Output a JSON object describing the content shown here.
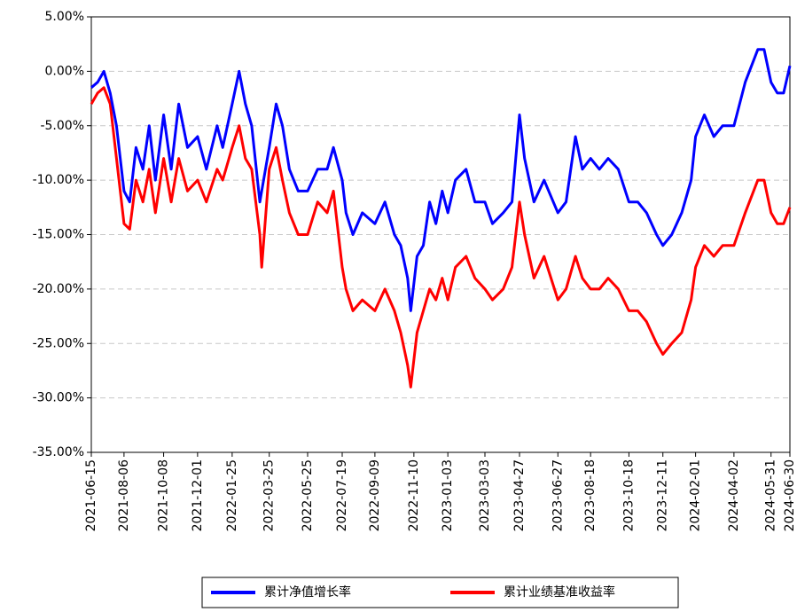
{
  "chart_data": {
    "type": "line",
    "x": [
      "2021-06-15",
      "2021-06-25",
      "2021-07-05",
      "2021-07-15",
      "2021-07-25",
      "2021-08-06",
      "2021-08-15",
      "2021-08-25",
      "2021-09-05",
      "2021-09-15",
      "2021-09-25",
      "2021-10-08",
      "2021-10-20",
      "2021-11-01",
      "2021-11-15",
      "2021-12-01",
      "2021-12-15",
      "2022-01-01",
      "2022-01-10",
      "2022-01-25",
      "2022-02-05",
      "2022-02-15",
      "2022-02-25",
      "2022-03-10",
      "2022-03-13",
      "2022-03-25",
      "2022-04-05",
      "2022-04-15",
      "2022-04-26",
      "2022-05-10",
      "2022-05-25",
      "2022-06-10",
      "2022-06-25",
      "2022-07-05",
      "2022-07-19",
      "2022-07-25",
      "2022-08-05",
      "2022-08-20",
      "2022-09-09",
      "2022-09-25",
      "2022-10-10",
      "2022-10-20",
      "2022-10-31",
      "2022-11-05",
      "2022-11-15",
      "2022-11-25",
      "2022-12-05",
      "2022-12-15",
      "2022-12-25",
      "2023-01-03",
      "2023-01-15",
      "2023-02-01",
      "2023-02-15",
      "2023-03-03",
      "2023-03-15",
      "2023-04-01",
      "2023-04-15",
      "2023-04-27",
      "2023-05-05",
      "2023-05-20",
      "2023-06-05",
      "2023-06-27",
      "2023-07-10",
      "2023-07-25",
      "2023-08-05",
      "2023-08-18",
      "2023-09-01",
      "2023-09-15",
      "2023-10-01",
      "2023-10-18",
      "2023-11-01",
      "2023-11-15",
      "2023-12-01",
      "2023-12-11",
      "2023-12-25",
      "2024-01-10",
      "2024-01-25",
      "2024-02-01",
      "2024-02-15",
      "2024-03-01",
      "2024-03-15",
      "2024-04-02",
      "2024-04-20",
      "2024-05-10",
      "2024-05-20",
      "2024-05-31",
      "2024-06-10",
      "2024-06-20",
      "2024-06-30"
    ],
    "series": [
      {
        "name": "累计净值增长率",
        "color": "#0000ff",
        "values": [
          -1.5,
          -1,
          0,
          -2,
          -5,
          -11,
          -12,
          -7,
          -9,
          -5,
          -10,
          -4,
          -9,
          -3,
          -7,
          -6,
          -9,
          -5,
          -7,
          -3,
          0,
          -3,
          -5,
          -12,
          -11,
          -7,
          -3,
          -5,
          -9,
          -11,
          -11,
          -9,
          -9,
          -7,
          -10,
          -13,
          -15,
          -13,
          -14,
          -12,
          -15,
          -16,
          -19,
          -22,
          -17,
          -16,
          -12,
          -14,
          -11,
          -13,
          -10,
          -9,
          -12,
          -12,
          -14,
          -13,
          -12,
          -4,
          -8,
          -12,
          -10,
          -13,
          -12,
          -6,
          -9,
          -8,
          -9,
          -8,
          -9,
          -12,
          -12,
          -13,
          -15,
          -16,
          -15,
          -13,
          -10,
          -6,
          -4,
          -6,
          -5,
          -5,
          -1,
          2,
          2,
          -1,
          -2,
          -2,
          0.5
        ]
      },
      {
        "name": "累计业绩基准收益率",
        "color": "#ff0000",
        "values": [
          -3,
          -2,
          -1.5,
          -3,
          -8,
          -14,
          -14.5,
          -10,
          -12,
          -9,
          -13,
          -8,
          -12,
          -8,
          -11,
          -10,
          -12,
          -9,
          -10,
          -7,
          -5,
          -8,
          -9,
          -15,
          -18,
          -9,
          -7,
          -10,
          -13,
          -15,
          -15,
          -12,
          -13,
          -11,
          -18,
          -20,
          -22,
          -21,
          -22,
          -20,
          -22,
          -24,
          -27,
          -29,
          -24,
          -22,
          -20,
          -21,
          -19,
          -21,
          -18,
          -17,
          -19,
          -20,
          -21,
          -20,
          -18,
          -12,
          -15,
          -19,
          -17,
          -21,
          -20,
          -17,
          -19,
          -20,
          -20,
          -19,
          -20,
          -22,
          -22,
          -23,
          -25,
          -26,
          -25,
          -24,
          -21,
          -18,
          -16,
          -17,
          -16,
          -16,
          -13,
          -10,
          -10,
          -13,
          -14,
          -14,
          -12.5
        ]
      }
    ],
    "xlim": [
      "2021-06-15",
      "2024-06-30"
    ],
    "xticks": [
      "2021-06-15",
      "2021-08-06",
      "2021-10-08",
      "2021-12-01",
      "2022-01-25",
      "2022-03-25",
      "2022-05-25",
      "2022-07-19",
      "2022-09-09",
      "2022-11-10",
      "2023-01-03",
      "2023-03-03",
      "2023-04-27",
      "2023-06-27",
      "2023-08-18",
      "2023-10-18",
      "2023-12-11",
      "2024-02-01",
      "2024-04-02",
      "2024-05-31",
      "2024-06-30"
    ],
    "ylim": [
      -35,
      5
    ],
    "yticks": [
      {
        "value": -35,
        "label": "-35.00%"
      },
      {
        "value": -30,
        "label": "-30.00%"
      },
      {
        "value": -25,
        "label": "-25.00%"
      },
      {
        "value": -20,
        "label": "-20.00%"
      },
      {
        "value": -15,
        "label": "-15.00%"
      },
      {
        "value": -10,
        "label": "-10.00%"
      },
      {
        "value": -5,
        "label": "-5.00%"
      },
      {
        "value": 0,
        "label": "0.00%"
      },
      {
        "value": 5,
        "label": "5.00%"
      }
    ],
    "grid": true,
    "legend": "bottom"
  }
}
